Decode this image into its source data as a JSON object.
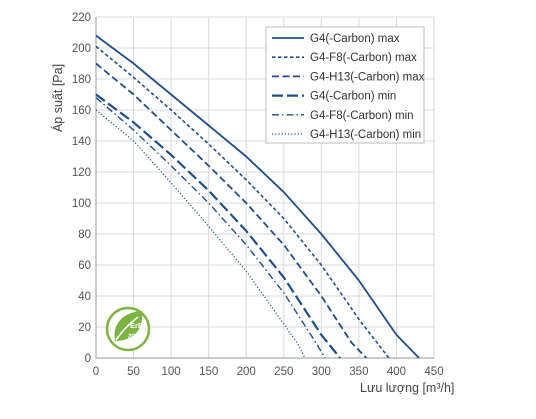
{
  "chart_data": {
    "type": "line",
    "title": "",
    "xlabel": "Lưu lượng [m³/h]",
    "ylabel": "Áp suất [Pa]",
    "xlim": [
      0,
      450
    ],
    "ylim": [
      0,
      220
    ],
    "x_ticks": [
      0,
      50,
      100,
      150,
      200,
      250,
      300,
      350,
      400,
      450
    ],
    "y_ticks": [
      0,
      20,
      40,
      60,
      80,
      100,
      120,
      140,
      160,
      180,
      200,
      220
    ],
    "grid": true,
    "legend_position": "top-right",
    "color": "#1f4e8c",
    "series": [
      {
        "name": "G4(-Carbon) max",
        "style": "solid",
        "x": [
          0,
          50,
          100,
          150,
          200,
          250,
          300,
          350,
          400,
          430
        ],
        "y": [
          208,
          190,
          170,
          150,
          130,
          107,
          80,
          50,
          15,
          0
        ]
      },
      {
        "name": "G4-F8(-Carbon) max",
        "style": "dashed-short",
        "x": [
          0,
          50,
          100,
          150,
          200,
          250,
          300,
          350,
          390
        ],
        "y": [
          201,
          181,
          160,
          138,
          115,
          90,
          60,
          25,
          0
        ]
      },
      {
        "name": "G4-H13(-Carbon) max",
        "style": "dashed-medium",
        "x": [
          0,
          50,
          100,
          150,
          200,
          250,
          300,
          340,
          360
        ],
        "y": [
          190,
          170,
          147,
          124,
          100,
          73,
          40,
          10,
          0
        ]
      },
      {
        "name": "G4(-Carbon) min",
        "style": "dashed-long",
        "x": [
          0,
          50,
          100,
          150,
          200,
          250,
          300,
          325
        ],
        "y": [
          170,
          152,
          131,
          108,
          82,
          52,
          15,
          0
        ]
      },
      {
        "name": "G4-F8(-Carbon) min",
        "style": "dash-dot",
        "x": [
          0,
          50,
          100,
          150,
          200,
          250,
          290,
          305
        ],
        "y": [
          168,
          147,
          124,
          100,
          73,
          42,
          12,
          0
        ]
      },
      {
        "name": "G4-H13(-Carbon) min",
        "style": "dotted",
        "x": [
          0,
          50,
          100,
          150,
          200,
          250,
          270,
          278
        ],
        "y": [
          160,
          140,
          113,
          85,
          56,
          22,
          8,
          0
        ]
      }
    ]
  },
  "badge": {
    "label": "ErP",
    "year": "2018",
    "icon": "erp-leaf-icon",
    "color": "#7cb342"
  }
}
